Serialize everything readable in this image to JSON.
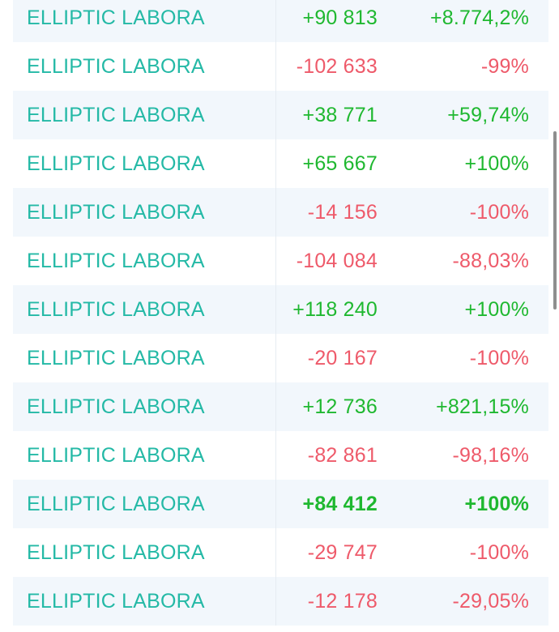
{
  "rows": [
    {
      "name": "ELLIPTIC LABORA",
      "amount": "+90 813",
      "percent": "+8.774,2%",
      "trend": "pos",
      "bold": false
    },
    {
      "name": "ELLIPTIC LABORA",
      "amount": "-102 633",
      "percent": "-99%",
      "trend": "neg",
      "bold": false
    },
    {
      "name": "ELLIPTIC LABORA",
      "amount": "+38 771",
      "percent": "+59,74%",
      "trend": "pos",
      "bold": false
    },
    {
      "name": "ELLIPTIC LABORA",
      "amount": "+65 667",
      "percent": "+100%",
      "trend": "pos",
      "bold": false
    },
    {
      "name": "ELLIPTIC LABORA",
      "amount": "-14 156",
      "percent": "-100%",
      "trend": "neg",
      "bold": false
    },
    {
      "name": "ELLIPTIC LABORA",
      "amount": "-104 084",
      "percent": "-88,03%",
      "trend": "neg",
      "bold": false
    },
    {
      "name": "ELLIPTIC LABORA",
      "amount": "+118 240",
      "percent": "+100%",
      "trend": "pos",
      "bold": false
    },
    {
      "name": "ELLIPTIC LABORA",
      "amount": "-20 167",
      "percent": "-100%",
      "trend": "neg",
      "bold": false
    },
    {
      "name": "ELLIPTIC LABORA",
      "amount": "+12 736",
      "percent": "+821,15%",
      "trend": "pos",
      "bold": false
    },
    {
      "name": "ELLIPTIC LABORA",
      "amount": "-82 861",
      "percent": "-98,16%",
      "trend": "neg",
      "bold": false
    },
    {
      "name": "ELLIPTIC LABORA",
      "amount": "+84 412",
      "percent": "+100%",
      "trend": "pos",
      "bold": true
    },
    {
      "name": "ELLIPTIC LABORA",
      "amount": "-29 747",
      "percent": "-100%",
      "trend": "neg",
      "bold": false
    },
    {
      "name": "ELLIPTIC LABORA",
      "amount": "-12 178",
      "percent": "-29,05%",
      "trend": "neg",
      "bold": false
    }
  ],
  "colors": {
    "name": "#24b9a6",
    "positive": "#1fb830",
    "negative": "#ee5a6a",
    "row_shaded": "#f2f7fc",
    "row_plain": "#ffffff"
  }
}
